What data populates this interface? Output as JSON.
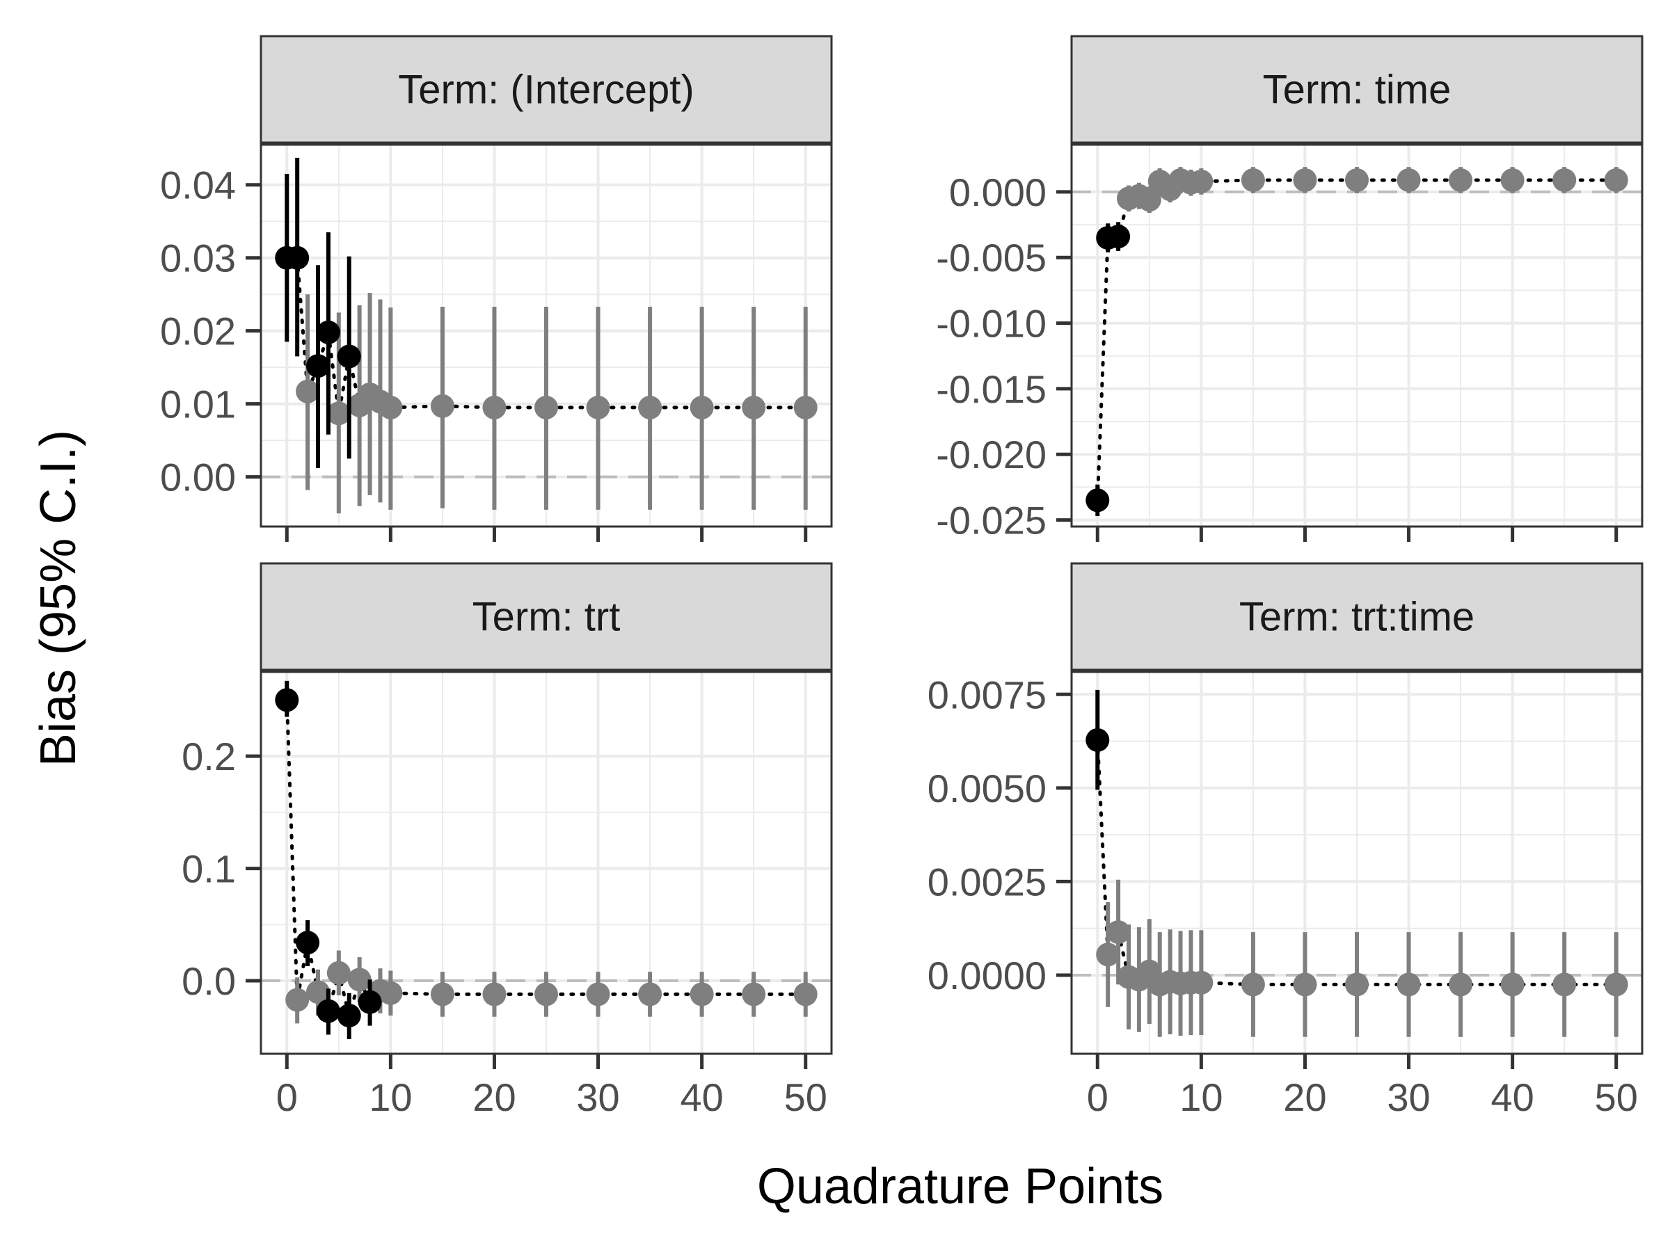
{
  "figure": {
    "xlabel": "Quadrature Points",
    "ylabel": "Bias (95% C.I.)"
  },
  "chart_data": [
    {
      "type": "scatter",
      "facet": "Term: (Intercept)",
      "xlim": [
        -2.5,
        52.5
      ],
      "ylim": [
        -0.0068,
        0.0455
      ],
      "x_ticks": [
        0,
        10,
        20,
        30,
        40,
        50
      ],
      "x_tick_labels": [
        "0",
        "10",
        "20",
        "30",
        "40",
        "50"
      ],
      "y_ticks": [
        0,
        0.01,
        0.02,
        0.03,
        0.04
      ],
      "y_tick_labels": [
        "0.00",
        "0.01",
        "0.02",
        "0.03",
        "0.04"
      ],
      "show_x_tick_labels": false,
      "reference_line": 0,
      "grid": true,
      "points": [
        {
          "x": 0,
          "y": 0.03,
          "lo": 0.0185,
          "hi": 0.0415,
          "color": "#000000"
        },
        {
          "x": 1,
          "y": 0.03,
          "lo": 0.0165,
          "hi": 0.0437,
          "color": "#000000"
        },
        {
          "x": 2,
          "y": 0.0117,
          "lo": -0.0018,
          "hi": 0.025,
          "color": "#7f7f7f"
        },
        {
          "x": 3,
          "y": 0.0152,
          "lo": 0.0012,
          "hi": 0.029,
          "color": "#000000"
        },
        {
          "x": 4,
          "y": 0.0198,
          "lo": 0.0058,
          "hi": 0.0335,
          "color": "#000000"
        },
        {
          "x": 5,
          "y": 0.0087,
          "lo": -0.005,
          "hi": 0.0225,
          "color": "#7f7f7f"
        },
        {
          "x": 6,
          "y": 0.0165,
          "lo": 0.0025,
          "hi": 0.0302,
          "color": "#000000"
        },
        {
          "x": 7,
          "y": 0.0098,
          "lo": -0.004,
          "hi": 0.0235,
          "color": "#7f7f7f"
        },
        {
          "x": 8,
          "y": 0.0113,
          "lo": -0.0025,
          "hi": 0.0252,
          "color": "#7f7f7f"
        },
        {
          "x": 9,
          "y": 0.0103,
          "lo": -0.0035,
          "hi": 0.0243,
          "color": "#7f7f7f"
        },
        {
          "x": 10,
          "y": 0.0095,
          "lo": -0.0045,
          "hi": 0.0232,
          "color": "#7f7f7f"
        },
        {
          "x": 15,
          "y": 0.0097,
          "lo": -0.0043,
          "hi": 0.0233,
          "color": "#7f7f7f"
        },
        {
          "x": 20,
          "y": 0.0095,
          "lo": -0.0045,
          "hi": 0.0233,
          "color": "#7f7f7f"
        },
        {
          "x": 25,
          "y": 0.0095,
          "lo": -0.0045,
          "hi": 0.0233,
          "color": "#7f7f7f"
        },
        {
          "x": 30,
          "y": 0.0095,
          "lo": -0.0045,
          "hi": 0.0233,
          "color": "#7f7f7f"
        },
        {
          "x": 35,
          "y": 0.0095,
          "lo": -0.0045,
          "hi": 0.0233,
          "color": "#7f7f7f"
        },
        {
          "x": 40,
          "y": 0.0095,
          "lo": -0.0045,
          "hi": 0.0233,
          "color": "#7f7f7f"
        },
        {
          "x": 45,
          "y": 0.0095,
          "lo": -0.0045,
          "hi": 0.0233,
          "color": "#7f7f7f"
        },
        {
          "x": 50,
          "y": 0.0095,
          "lo": -0.0045,
          "hi": 0.0233,
          "color": "#7f7f7f"
        }
      ]
    },
    {
      "type": "scatter",
      "facet": "Term: time",
      "xlim": [
        -2.5,
        52.5
      ],
      "ylim": [
        -0.0255,
        0.0036
      ],
      "x_ticks": [
        0,
        10,
        20,
        30,
        40,
        50
      ],
      "x_tick_labels": [
        "0",
        "10",
        "20",
        "30",
        "40",
        "50"
      ],
      "y_ticks": [
        -0.025,
        -0.02,
        -0.015,
        -0.01,
        -0.005,
        0
      ],
      "y_tick_labels": [
        "-0.025",
        "-0.020",
        "-0.015",
        "-0.010",
        "-0.005",
        "0.000"
      ],
      "show_x_tick_labels": false,
      "reference_line": 0,
      "grid": true,
      "points": [
        {
          "x": 0,
          "y": -0.0235,
          "lo": -0.0247,
          "hi": -0.0223,
          "color": "#000000"
        },
        {
          "x": 1,
          "y": -0.0035,
          "lo": -0.0046,
          "hi": -0.0024,
          "color": "#000000"
        },
        {
          "x": 2,
          "y": -0.0034,
          "lo": -0.0045,
          "hi": -0.0023,
          "color": "#000000"
        },
        {
          "x": 3,
          "y": -0.0005,
          "lo": -0.0015,
          "hi": 0.0005,
          "color": "#7f7f7f"
        },
        {
          "x": 4,
          "y": -0.0003,
          "lo": -0.0013,
          "hi": 0.0007,
          "color": "#7f7f7f"
        },
        {
          "x": 5,
          "y": -0.0006,
          "lo": -0.0016,
          "hi": 0.0004,
          "color": "#7f7f7f"
        },
        {
          "x": 6,
          "y": 0.0008,
          "lo": -0.0002,
          "hi": 0.0018,
          "color": "#7f7f7f"
        },
        {
          "x": 7,
          "y": 0.0002,
          "lo": -0.0008,
          "hi": 0.0012,
          "color": "#7f7f7f"
        },
        {
          "x": 8,
          "y": 0.0009,
          "lo": -0.0001,
          "hi": 0.0019,
          "color": "#7f7f7f"
        },
        {
          "x": 9,
          "y": 0.0007,
          "lo": -0.0003,
          "hi": 0.0017,
          "color": "#7f7f7f"
        },
        {
          "x": 10,
          "y": 0.0008,
          "lo": -0.0002,
          "hi": 0.0018,
          "color": "#7f7f7f"
        },
        {
          "x": 15,
          "y": 0.0009,
          "lo": -0.0001,
          "hi": 0.0019,
          "color": "#7f7f7f"
        },
        {
          "x": 20,
          "y": 0.0009,
          "lo": -0.0001,
          "hi": 0.0019,
          "color": "#7f7f7f"
        },
        {
          "x": 25,
          "y": 0.0009,
          "lo": -0.0001,
          "hi": 0.0019,
          "color": "#7f7f7f"
        },
        {
          "x": 30,
          "y": 0.0009,
          "lo": -0.0001,
          "hi": 0.0019,
          "color": "#7f7f7f"
        },
        {
          "x": 35,
          "y": 0.0009,
          "lo": -0.0001,
          "hi": 0.0019,
          "color": "#7f7f7f"
        },
        {
          "x": 40,
          "y": 0.0009,
          "lo": -0.0001,
          "hi": 0.0019,
          "color": "#7f7f7f"
        },
        {
          "x": 45,
          "y": 0.0009,
          "lo": -0.0001,
          "hi": 0.0019,
          "color": "#7f7f7f"
        },
        {
          "x": 50,
          "y": 0.0009,
          "lo": -0.0001,
          "hi": 0.0019,
          "color": "#7f7f7f"
        }
      ]
    },
    {
      "type": "scatter",
      "facet": "Term: trt",
      "xlim": [
        -2.5,
        52.5
      ],
      "ylim": [
        -0.065,
        0.275
      ],
      "x_ticks": [
        0,
        10,
        20,
        30,
        40,
        50
      ],
      "x_tick_labels": [
        "0",
        "10",
        "20",
        "30",
        "40",
        "50"
      ],
      "y_ticks": [
        0,
        0.1,
        0.2
      ],
      "y_tick_labels": [
        "0.0",
        "0.1",
        "0.2"
      ],
      "show_x_tick_labels": true,
      "reference_line": 0,
      "grid": true,
      "points": [
        {
          "x": 0,
          "y": 0.25,
          "lo": 0.235,
          "hi": 0.267,
          "color": "#000000"
        },
        {
          "x": 1,
          "y": -0.017,
          "lo": -0.038,
          "hi": 0.003,
          "color": "#7f7f7f"
        },
        {
          "x": 2,
          "y": 0.034,
          "lo": 0.013,
          "hi": 0.054,
          "color": "#000000"
        },
        {
          "x": 3,
          "y": -0.01,
          "lo": -0.031,
          "hi": 0.01,
          "color": "#7f7f7f"
        },
        {
          "x": 4,
          "y": -0.027,
          "lo": -0.048,
          "hi": -0.007,
          "color": "#000000"
        },
        {
          "x": 5,
          "y": 0.007,
          "lo": -0.013,
          "hi": 0.027,
          "color": "#7f7f7f"
        },
        {
          "x": 6,
          "y": -0.031,
          "lo": -0.052,
          "hi": -0.011,
          "color": "#000000"
        },
        {
          "x": 7,
          "y": 0.001,
          "lo": -0.019,
          "hi": 0.021,
          "color": "#7f7f7f"
        },
        {
          "x": 8,
          "y": -0.019,
          "lo": -0.04,
          "hi": 0.001,
          "color": "#000000"
        },
        {
          "x": 9,
          "y": -0.009,
          "lo": -0.029,
          "hi": 0.011,
          "color": "#7f7f7f"
        },
        {
          "x": 10,
          "y": -0.011,
          "lo": -0.031,
          "hi": 0.009,
          "color": "#7f7f7f"
        },
        {
          "x": 15,
          "y": -0.012,
          "lo": -0.032,
          "hi": 0.008,
          "color": "#7f7f7f"
        },
        {
          "x": 20,
          "y": -0.012,
          "lo": -0.032,
          "hi": 0.008,
          "color": "#7f7f7f"
        },
        {
          "x": 25,
          "y": -0.012,
          "lo": -0.032,
          "hi": 0.008,
          "color": "#7f7f7f"
        },
        {
          "x": 30,
          "y": -0.012,
          "lo": -0.032,
          "hi": 0.008,
          "color": "#7f7f7f"
        },
        {
          "x": 35,
          "y": -0.012,
          "lo": -0.032,
          "hi": 0.008,
          "color": "#7f7f7f"
        },
        {
          "x": 40,
          "y": -0.012,
          "lo": -0.032,
          "hi": 0.008,
          "color": "#7f7f7f"
        },
        {
          "x": 45,
          "y": -0.012,
          "lo": -0.032,
          "hi": 0.008,
          "color": "#7f7f7f"
        },
        {
          "x": 50,
          "y": -0.012,
          "lo": -0.032,
          "hi": 0.008,
          "color": "#7f7f7f"
        }
      ]
    },
    {
      "type": "scatter",
      "facet": "Term: trt:time",
      "xlim": [
        -2.5,
        52.5
      ],
      "ylim": [
        -0.0021,
        0.0081
      ],
      "x_ticks": [
        0,
        10,
        20,
        30,
        40,
        50
      ],
      "x_tick_labels": [
        "0",
        "10",
        "20",
        "30",
        "40",
        "50"
      ],
      "y_ticks": [
        0,
        0.0025,
        0.005,
        0.0075
      ],
      "y_tick_labels": [
        "0.0000",
        "0.0025",
        "0.0050",
        "0.0075"
      ],
      "show_x_tick_labels": true,
      "reference_line": 0,
      "grid": true,
      "points": [
        {
          "x": 0,
          "y": 0.00628,
          "lo": 0.00495,
          "hi": 0.00762,
          "color": "#000000"
        },
        {
          "x": 1,
          "y": 0.00055,
          "lo": -0.00085,
          "hi": 0.00195,
          "color": "#7f7f7f"
        },
        {
          "x": 2,
          "y": 0.00115,
          "lo": -0.00025,
          "hi": 0.00255,
          "color": "#7f7f7f"
        },
        {
          "x": 3,
          "y": -5e-05,
          "lo": -0.00145,
          "hi": 0.00135,
          "color": "#7f7f7f"
        },
        {
          "x": 4,
          "y": -0.00012,
          "lo": -0.00152,
          "hi": 0.00128,
          "color": "#7f7f7f"
        },
        {
          "x": 5,
          "y": 0.0001,
          "lo": -0.0013,
          "hi": 0.0015,
          "color": "#7f7f7f"
        },
        {
          "x": 6,
          "y": -0.00025,
          "lo": -0.00165,
          "hi": 0.00115,
          "color": "#7f7f7f"
        },
        {
          "x": 7,
          "y": -0.00018,
          "lo": -0.00158,
          "hi": 0.00122,
          "color": "#7f7f7f"
        },
        {
          "x": 8,
          "y": -0.00022,
          "lo": -0.00162,
          "hi": 0.00118,
          "color": "#7f7f7f"
        },
        {
          "x": 9,
          "y": -0.0002,
          "lo": -0.0016,
          "hi": 0.0012,
          "color": "#7f7f7f"
        },
        {
          "x": 10,
          "y": -0.0002,
          "lo": -0.0016,
          "hi": 0.0012,
          "color": "#7f7f7f"
        },
        {
          "x": 15,
          "y": -0.00025,
          "lo": -0.00165,
          "hi": 0.00115,
          "color": "#7f7f7f"
        },
        {
          "x": 20,
          "y": -0.00025,
          "lo": -0.00165,
          "hi": 0.00115,
          "color": "#7f7f7f"
        },
        {
          "x": 25,
          "y": -0.00025,
          "lo": -0.00165,
          "hi": 0.00115,
          "color": "#7f7f7f"
        },
        {
          "x": 30,
          "y": -0.00025,
          "lo": -0.00165,
          "hi": 0.00115,
          "color": "#7f7f7f"
        },
        {
          "x": 35,
          "y": -0.00025,
          "lo": -0.00165,
          "hi": 0.00115,
          "color": "#7f7f7f"
        },
        {
          "x": 40,
          "y": -0.00025,
          "lo": -0.00165,
          "hi": 0.00115,
          "color": "#7f7f7f"
        },
        {
          "x": 45,
          "y": -0.00025,
          "lo": -0.00165,
          "hi": 0.00115,
          "color": "#7f7f7f"
        },
        {
          "x": 50,
          "y": -0.00025,
          "lo": -0.00165,
          "hi": 0.00115,
          "color": "#7f7f7f"
        }
      ]
    }
  ]
}
